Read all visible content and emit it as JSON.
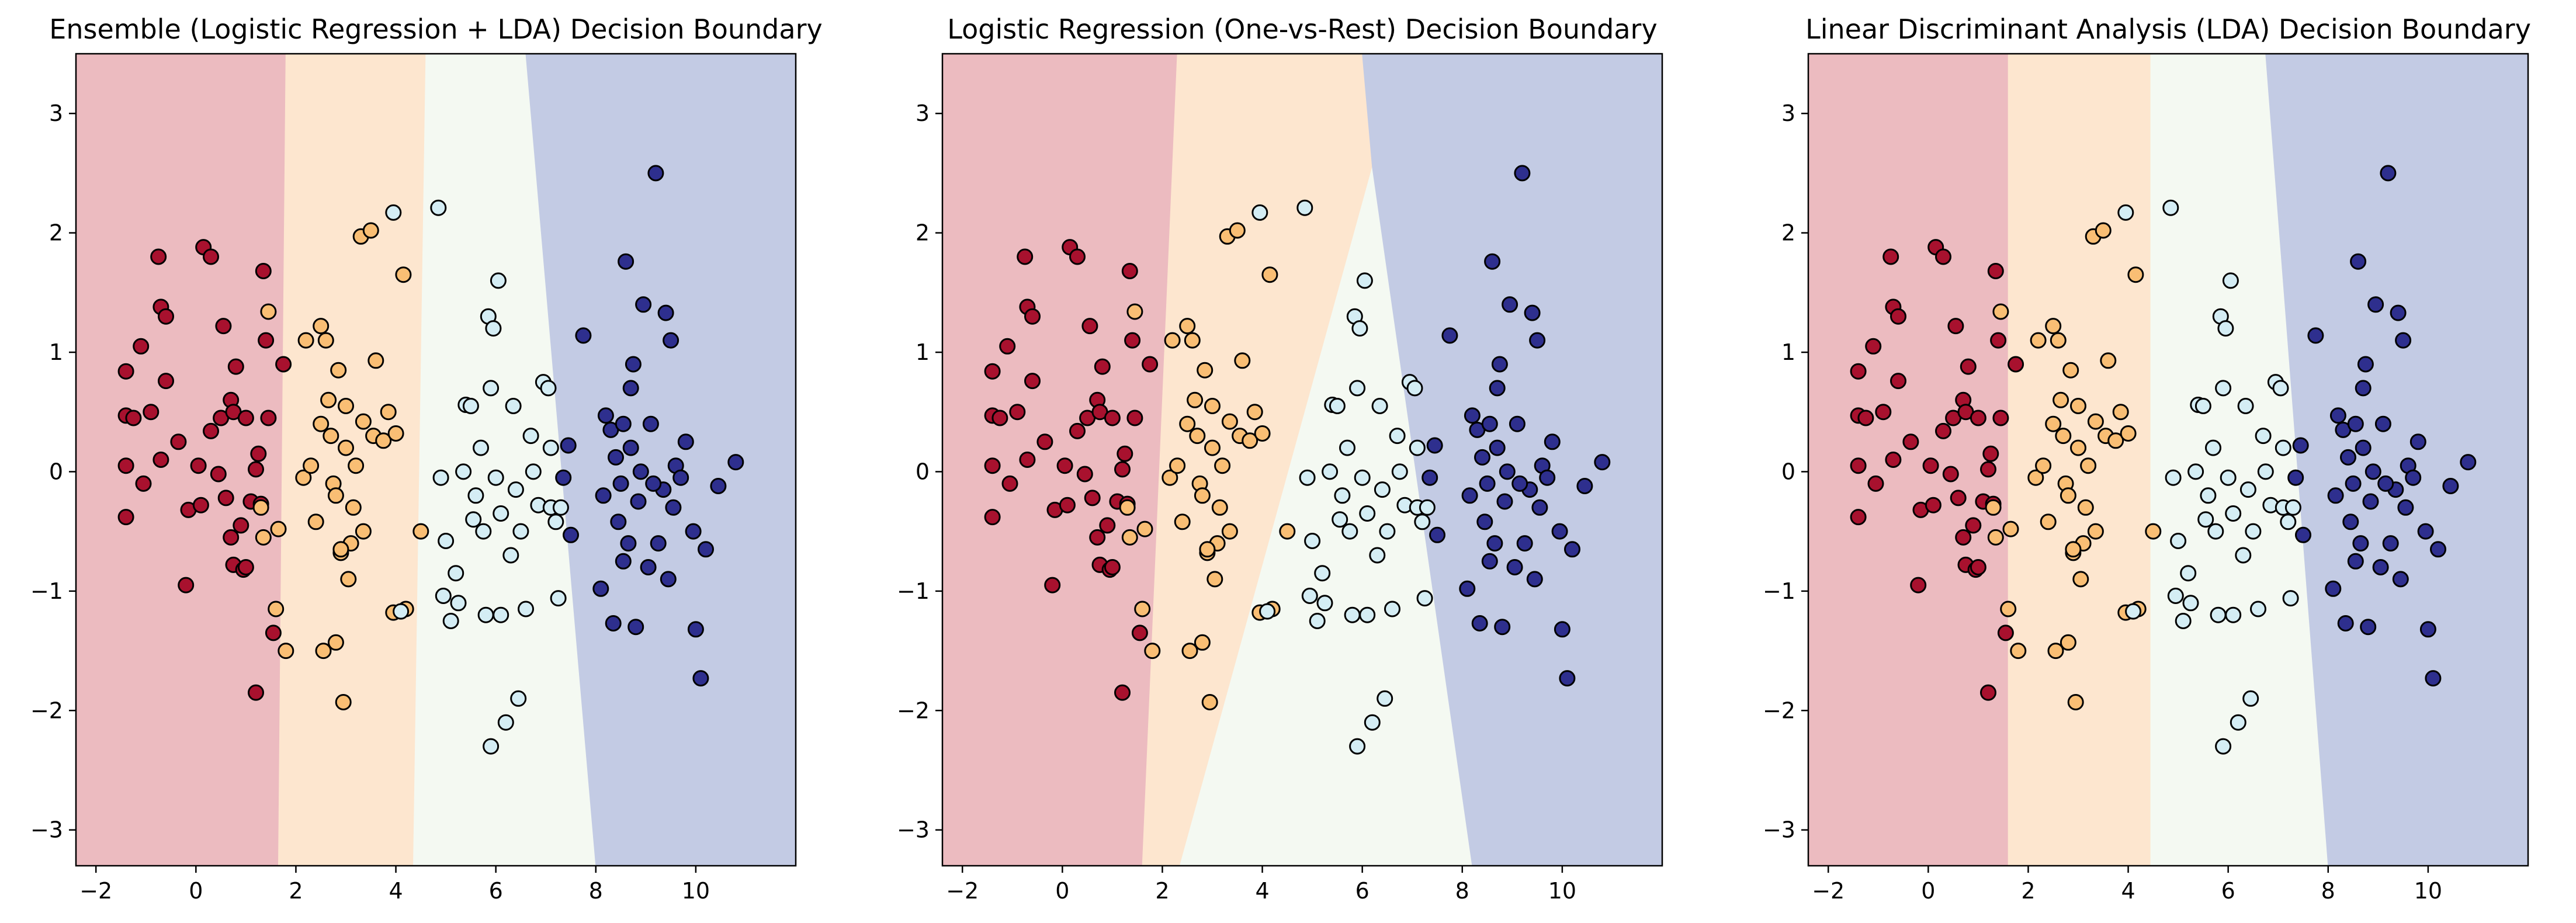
{
  "chart_data": [
    {
      "type": "scatter",
      "title": "Ensemble (Logistic Regression + LDA) Decision Boundary",
      "xlabel": "",
      "ylabel": "",
      "xlim": [
        -2.4,
        12.0
      ],
      "ylim": [
        -3.3,
        3.5
      ],
      "xticks": [
        "−2",
        "0",
        "2",
        "4",
        "6",
        "8",
        "10"
      ],
      "yticks": [
        "−3",
        "−2",
        "−1",
        "0",
        "1",
        "2",
        "3"
      ],
      "grid": false,
      "legend": "none",
      "regions": [
        {
          "class": 0,
          "color": "#ecbbc0",
          "polygon": [
            [
              -2.4,
              -3.3
            ],
            [
              1.65,
              -3.3
            ],
            [
              1.8,
              3.5
            ],
            [
              -2.4,
              3.5
            ]
          ]
        },
        {
          "class": 1,
          "color": "#fde6cf",
          "polygon": [
            [
              1.65,
              -3.3
            ],
            [
              4.35,
              -3.3
            ],
            [
              4.6,
              3.5
            ],
            [
              1.8,
              3.5
            ]
          ]
        },
        {
          "class": 2,
          "color": "#f4f9f2",
          "polygon": [
            [
              4.35,
              -3.3
            ],
            [
              8.0,
              -3.3
            ],
            [
              6.6,
              3.5
            ],
            [
              4.6,
              3.5
            ]
          ]
        },
        {
          "class": 3,
          "color": "#c3cbe4",
          "polygon": [
            [
              8.0,
              -3.3
            ],
            [
              12.0,
              -3.3
            ],
            [
              12.0,
              3.5
            ],
            [
              6.6,
              3.5
            ]
          ]
        }
      ]
    },
    {
      "type": "scatter",
      "title": "Logistic Regression (One-vs-Rest) Decision Boundary",
      "xlabel": "",
      "ylabel": "",
      "xlim": [
        -2.4,
        12.0
      ],
      "ylim": [
        -3.3,
        3.5
      ],
      "xticks": [
        "−2",
        "0",
        "2",
        "4",
        "6",
        "8",
        "10"
      ],
      "yticks": [
        "−3",
        "−2",
        "−1",
        "0",
        "1",
        "2",
        "3"
      ],
      "grid": false,
      "legend": "none",
      "regions": [
        {
          "class": 0,
          "color": "#ecbbc0",
          "polygon": [
            [
              -2.4,
              -3.3
            ],
            [
              1.6,
              -3.3
            ],
            [
              2.3,
              3.5
            ],
            [
              -2.4,
              3.5
            ]
          ]
        },
        {
          "class": 1,
          "color": "#fde6cf",
          "polygon": [
            [
              1.6,
              -3.3
            ],
            [
              2.35,
              -3.3
            ],
            [
              6.2,
              2.55
            ],
            [
              6.0,
              3.5
            ],
            [
              2.3,
              3.5
            ]
          ]
        },
        {
          "class": 2,
          "color": "#f4f9f2",
          "polygon": [
            [
              2.35,
              -3.3
            ],
            [
              8.2,
              -3.3
            ],
            [
              6.2,
              2.55
            ]
          ]
        },
        {
          "class": 3,
          "color": "#c3cbe4",
          "polygon": [
            [
              8.2,
              -3.3
            ],
            [
              12.0,
              -3.3
            ],
            [
              12.0,
              3.5
            ],
            [
              6.0,
              3.5
            ],
            [
              6.2,
              2.55
            ]
          ]
        }
      ]
    },
    {
      "type": "scatter",
      "title": "Linear Discriminant Analysis (LDA) Decision Boundary",
      "xlabel": "",
      "ylabel": "",
      "xlim": [
        -2.4,
        12.0
      ],
      "ylim": [
        -3.3,
        3.5
      ],
      "xticks": [
        "−2",
        "0",
        "2",
        "4",
        "6",
        "8",
        "10"
      ],
      "yticks": [
        "−3",
        "−2",
        "−1",
        "0",
        "1",
        "2",
        "3"
      ],
      "grid": false,
      "legend": "none",
      "regions": [
        {
          "class": 0,
          "color": "#ecbbc0",
          "polygon": [
            [
              -2.4,
              -3.3
            ],
            [
              1.6,
              -3.3
            ],
            [
              1.6,
              3.5
            ],
            [
              -2.4,
              3.5
            ]
          ]
        },
        {
          "class": 1,
          "color": "#fde6cf",
          "polygon": [
            [
              1.6,
              -3.3
            ],
            [
              4.45,
              -3.3
            ],
            [
              4.45,
              3.5
            ],
            [
              1.6,
              3.5
            ]
          ]
        },
        {
          "class": 2,
          "color": "#f4f9f2",
          "polygon": [
            [
              4.45,
              -3.3
            ],
            [
              8.0,
              -3.3
            ],
            [
              6.75,
              3.5
            ],
            [
              4.45,
              3.5
            ]
          ]
        },
        {
          "class": 3,
          "color": "#c3cbe4",
          "polygon": [
            [
              8.0,
              -3.3
            ],
            [
              12.0,
              -3.3
            ],
            [
              12.0,
              3.5
            ],
            [
              6.75,
              3.5
            ]
          ]
        }
      ]
    }
  ],
  "shared_points": {
    "class_colors": [
      "#a8112e",
      "#f9be74",
      "#d4edf4",
      "#2e2f8e"
    ],
    "edge_color": "#000000",
    "classes": [
      {
        "class": 0,
        "points": [
          [
            -1.4,
            0.47
          ],
          [
            -1.25,
            0.45
          ],
          [
            -1.4,
            0.84
          ],
          [
            -1.1,
            1.05
          ],
          [
            -0.9,
            0.5
          ],
          [
            -0.7,
            0.1
          ],
          [
            -1.4,
            0.05
          ],
          [
            -1.4,
            -0.38
          ],
          [
            -1.05,
            -0.1
          ],
          [
            -0.75,
            1.8
          ],
          [
            -0.7,
            1.38
          ],
          [
            -0.6,
            1.3
          ],
          [
            -0.6,
            0.76
          ],
          [
            -0.35,
            0.25
          ],
          [
            -0.2,
            -0.95
          ],
          [
            -0.15,
            -0.32
          ],
          [
            0.05,
            0.05
          ],
          [
            0.15,
            1.88
          ],
          [
            0.3,
            1.8
          ],
          [
            0.3,
            0.34
          ],
          [
            0.45,
            -0.02
          ],
          [
            0.5,
            0.45
          ],
          [
            0.55,
            1.22
          ],
          [
            0.6,
            -0.22
          ],
          [
            0.7,
            -0.55
          ],
          [
            0.75,
            -0.78
          ],
          [
            0.7,
            0.6
          ],
          [
            0.75,
            0.5
          ],
          [
            0.8,
            0.88
          ],
          [
            0.9,
            -0.45
          ],
          [
            0.95,
            -0.82
          ],
          [
            1.0,
            -0.8
          ],
          [
            1.1,
            -0.25
          ],
          [
            1.2,
            -1.85
          ],
          [
            1.25,
            0.15
          ],
          [
            1.35,
            1.68
          ],
          [
            1.4,
            1.1
          ],
          [
            1.45,
            0.45
          ],
          [
            1.55,
            -1.35
          ],
          [
            1.75,
            0.9
          ],
          [
            1.2,
            0.02
          ],
          [
            1.0,
            0.45
          ],
          [
            0.1,
            -0.28
          ],
          [
            1.3,
            -0.27
          ]
        ]
      },
      {
        "class": 1,
        "points": [
          [
            1.3,
            -0.3
          ],
          [
            1.35,
            -0.55
          ],
          [
            1.45,
            1.34
          ],
          [
            1.6,
            -1.15
          ],
          [
            1.65,
            -0.48
          ],
          [
            1.8,
            -1.5
          ],
          [
            2.15,
            -0.05
          ],
          [
            2.2,
            1.1
          ],
          [
            2.3,
            0.05
          ],
          [
            2.4,
            -0.42
          ],
          [
            2.5,
            1.22
          ],
          [
            2.5,
            0.4
          ],
          [
            2.6,
            1.1
          ],
          [
            2.65,
            0.6
          ],
          [
            2.7,
            0.3
          ],
          [
            2.75,
            -0.1
          ],
          [
            2.8,
            -0.2
          ],
          [
            2.85,
            0.85
          ],
          [
            2.9,
            -0.68
          ],
          [
            3.0,
            0.55
          ],
          [
            3.0,
            0.2
          ],
          [
            3.05,
            -0.9
          ],
          [
            3.1,
            -0.6
          ],
          [
            3.15,
            -0.3
          ],
          [
            3.2,
            0.05
          ],
          [
            3.3,
            1.97
          ],
          [
            3.35,
            0.42
          ],
          [
            3.5,
            2.02
          ],
          [
            3.55,
            0.3
          ],
          [
            3.6,
            0.93
          ],
          [
            3.75,
            0.26
          ],
          [
            3.85,
            0.5
          ],
          [
            3.95,
            -1.18
          ],
          [
            4.0,
            0.32
          ],
          [
            4.15,
            1.65
          ],
          [
            4.2,
            -1.15
          ],
          [
            4.5,
            -0.5
          ],
          [
            2.55,
            -1.5
          ],
          [
            2.8,
            -1.43
          ],
          [
            2.95,
            -1.93
          ],
          [
            3.35,
            -0.5
          ],
          [
            2.9,
            -0.65
          ]
        ]
      },
      {
        "class": 2,
        "points": [
          [
            3.95,
            2.17
          ],
          [
            4.85,
            2.21
          ],
          [
            4.1,
            -1.17
          ],
          [
            4.9,
            -0.05
          ],
          [
            4.95,
            -1.04
          ],
          [
            5.0,
            -0.58
          ],
          [
            5.1,
            -1.25
          ],
          [
            5.2,
            -0.85
          ],
          [
            5.25,
            -1.1
          ],
          [
            5.35,
            0.0
          ],
          [
            5.4,
            0.56
          ],
          [
            5.5,
            0.55
          ],
          [
            5.55,
            -0.4
          ],
          [
            5.7,
            0.2
          ],
          [
            5.75,
            -0.5
          ],
          [
            5.8,
            -1.2
          ],
          [
            5.85,
            1.3
          ],
          [
            5.9,
            0.7
          ],
          [
            5.9,
            -2.3
          ],
          [
            5.95,
            1.2
          ],
          [
            6.05,
            1.6
          ],
          [
            6.1,
            -0.35
          ],
          [
            6.2,
            -2.1
          ],
          [
            6.35,
            0.55
          ],
          [
            6.4,
            -0.15
          ],
          [
            6.45,
            -1.9
          ],
          [
            6.5,
            -0.5
          ],
          [
            6.6,
            -1.15
          ],
          [
            6.7,
            0.3
          ],
          [
            6.75,
            0.0
          ],
          [
            6.85,
            -0.28
          ],
          [
            6.95,
            0.75
          ],
          [
            7.05,
            0.7
          ],
          [
            7.1,
            -0.3
          ],
          [
            7.2,
            -0.42
          ],
          [
            7.25,
            -1.06
          ],
          [
            7.3,
            -0.3
          ],
          [
            6.0,
            -0.05
          ],
          [
            5.6,
            -0.2
          ],
          [
            6.1,
            -1.2
          ],
          [
            6.3,
            -0.7
          ],
          [
            7.1,
            0.2
          ]
        ]
      },
      {
        "class": 3,
        "points": [
          [
            7.35,
            -0.05
          ],
          [
            7.45,
            0.22
          ],
          [
            7.5,
            -0.53
          ],
          [
            7.75,
            1.14
          ],
          [
            8.1,
            -0.98
          ],
          [
            8.15,
            -0.2
          ],
          [
            8.2,
            0.47
          ],
          [
            8.3,
            0.35
          ],
          [
            8.35,
            -1.27
          ],
          [
            8.4,
            0.12
          ],
          [
            8.45,
            -0.42
          ],
          [
            8.5,
            -0.1
          ],
          [
            8.55,
            0.4
          ],
          [
            8.6,
            1.76
          ],
          [
            8.65,
            -0.6
          ],
          [
            8.7,
            0.7
          ],
          [
            8.75,
            0.9
          ],
          [
            8.8,
            -1.3
          ],
          [
            8.85,
            -0.25
          ],
          [
            8.95,
            1.4
          ],
          [
            9.05,
            -0.8
          ],
          [
            9.1,
            0.4
          ],
          [
            9.2,
            2.5
          ],
          [
            9.25,
            -0.6
          ],
          [
            9.35,
            -0.15
          ],
          [
            9.4,
            1.33
          ],
          [
            9.45,
            -0.9
          ],
          [
            9.5,
            1.1
          ],
          [
            9.55,
            -0.3
          ],
          [
            9.6,
            0.05
          ],
          [
            9.7,
            -0.05
          ],
          [
            9.8,
            0.25
          ],
          [
            9.95,
            -0.5
          ],
          [
            10.0,
            -1.32
          ],
          [
            10.1,
            -1.73
          ],
          [
            10.2,
            -0.65
          ],
          [
            10.45,
            -0.12
          ],
          [
            10.8,
            0.08
          ],
          [
            9.15,
            -0.1
          ],
          [
            8.9,
            0.0
          ],
          [
            8.55,
            -0.75
          ],
          [
            8.7,
            0.2
          ]
        ]
      }
    ]
  }
}
